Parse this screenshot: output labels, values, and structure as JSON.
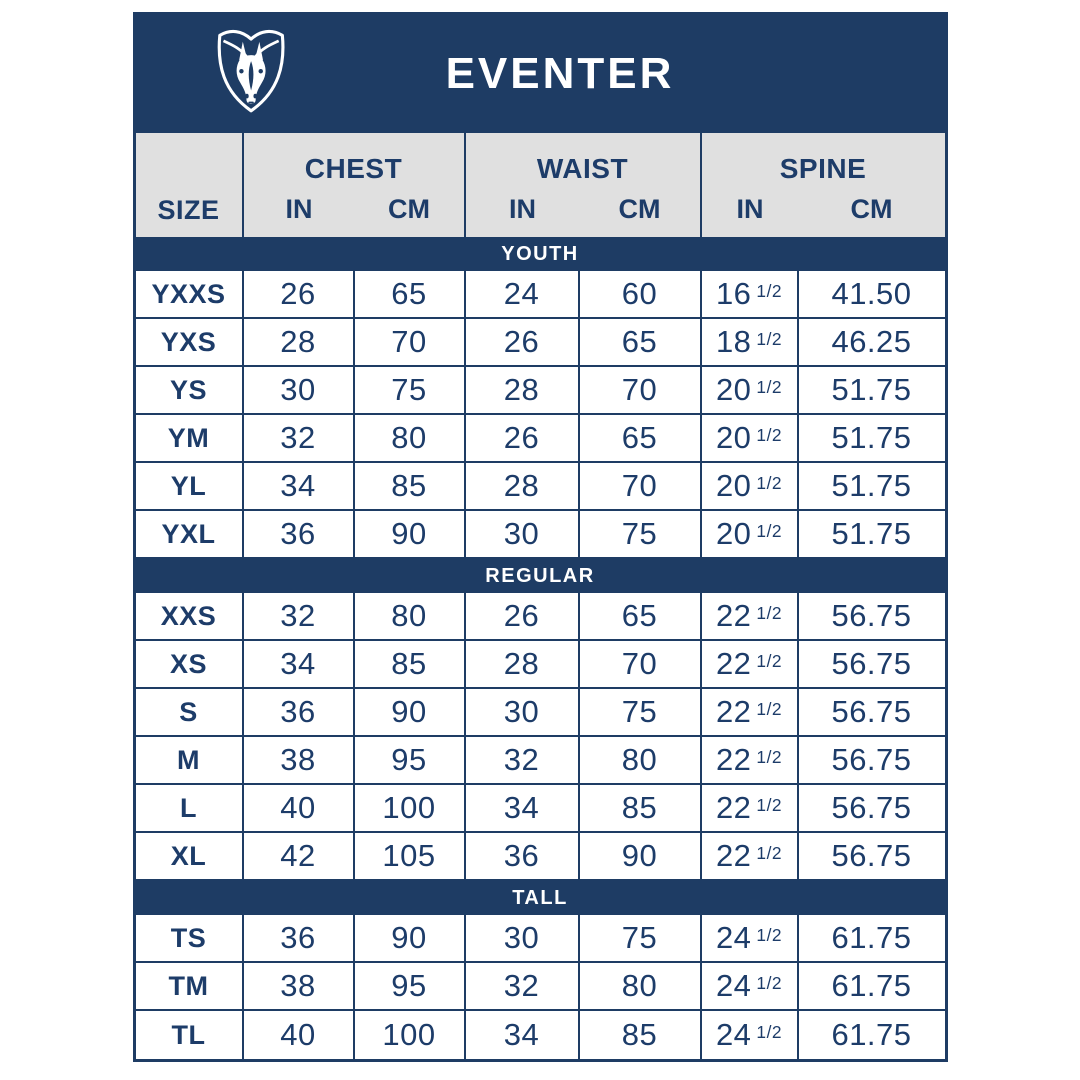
{
  "title": "EVENTER",
  "logo_icon": "horse-shield-icon",
  "colors": {
    "navy": "#1e3c64",
    "header_gray": "#e0e0e0",
    "text_navy": "#1d3c69",
    "white": "#ffffff"
  },
  "table": {
    "size_label": "SIZE",
    "unit_in": "IN",
    "unit_cm": "CM",
    "groups": [
      {
        "label": "CHEST"
      },
      {
        "label": "WAIST"
      },
      {
        "label": "SPINE"
      }
    ],
    "sections": [
      {
        "label": "YOUTH",
        "rows": [
          {
            "size": "YXXS",
            "chest_in": "26",
            "chest_cm": "65",
            "waist_in": "24",
            "waist_cm": "60",
            "spine_in": "16",
            "spine_frac": "1/2",
            "spine_cm": "41.50"
          },
          {
            "size": "YXS",
            "chest_in": "28",
            "chest_cm": "70",
            "waist_in": "26",
            "waist_cm": "65",
            "spine_in": "18",
            "spine_frac": "1/2",
            "spine_cm": "46.25"
          },
          {
            "size": "YS",
            "chest_in": "30",
            "chest_cm": "75",
            "waist_in": "28",
            "waist_cm": "70",
            "spine_in": "20",
            "spine_frac": "1/2",
            "spine_cm": "51.75"
          },
          {
            "size": "YM",
            "chest_in": "32",
            "chest_cm": "80",
            "waist_in": "26",
            "waist_cm": "65",
            "spine_in": "20",
            "spine_frac": "1/2",
            "spine_cm": "51.75"
          },
          {
            "size": "YL",
            "chest_in": "34",
            "chest_cm": "85",
            "waist_in": "28",
            "waist_cm": "70",
            "spine_in": "20",
            "spine_frac": "1/2",
            "spine_cm": "51.75"
          },
          {
            "size": "YXL",
            "chest_in": "36",
            "chest_cm": "90",
            "waist_in": "30",
            "waist_cm": "75",
            "spine_in": "20",
            "spine_frac": "1/2",
            "spine_cm": "51.75"
          }
        ]
      },
      {
        "label": "REGULAR",
        "rows": [
          {
            "size": "XXS",
            "chest_in": "32",
            "chest_cm": "80",
            "waist_in": "26",
            "waist_cm": "65",
            "spine_in": "22",
            "spine_frac": "1/2",
            "spine_cm": "56.75"
          },
          {
            "size": "XS",
            "chest_in": "34",
            "chest_cm": "85",
            "waist_in": "28",
            "waist_cm": "70",
            "spine_in": "22",
            "spine_frac": "1/2",
            "spine_cm": "56.75"
          },
          {
            "size": "S",
            "chest_in": "36",
            "chest_cm": "90",
            "waist_in": "30",
            "waist_cm": "75",
            "spine_in": "22",
            "spine_frac": "1/2",
            "spine_cm": "56.75"
          },
          {
            "size": "M",
            "chest_in": "38",
            "chest_cm": "95",
            "waist_in": "32",
            "waist_cm": "80",
            "spine_in": "22",
            "spine_frac": "1/2",
            "spine_cm": "56.75"
          },
          {
            "size": "L",
            "chest_in": "40",
            "chest_cm": "100",
            "waist_in": "34",
            "waist_cm": "85",
            "spine_in": "22",
            "spine_frac": "1/2",
            "spine_cm": "56.75"
          },
          {
            "size": "XL",
            "chest_in": "42",
            "chest_cm": "105",
            "waist_in": "36",
            "waist_cm": "90",
            "spine_in": "22",
            "spine_frac": "1/2",
            "spine_cm": "56.75"
          }
        ]
      },
      {
        "label": "TALL",
        "rows": [
          {
            "size": "TS",
            "chest_in": "36",
            "chest_cm": "90",
            "waist_in": "30",
            "waist_cm": "75",
            "spine_in": "24",
            "spine_frac": "1/2",
            "spine_cm": "61.75"
          },
          {
            "size": "TM",
            "chest_in": "38",
            "chest_cm": "95",
            "waist_in": "32",
            "waist_cm": "80",
            "spine_in": "24",
            "spine_frac": "1/2",
            "spine_cm": "61.75"
          },
          {
            "size": "TL",
            "chest_in": "40",
            "chest_cm": "100",
            "waist_in": "34",
            "waist_cm": "85",
            "spine_in": "24",
            "spine_frac": "1/2",
            "spine_cm": "61.75"
          }
        ]
      }
    ]
  }
}
